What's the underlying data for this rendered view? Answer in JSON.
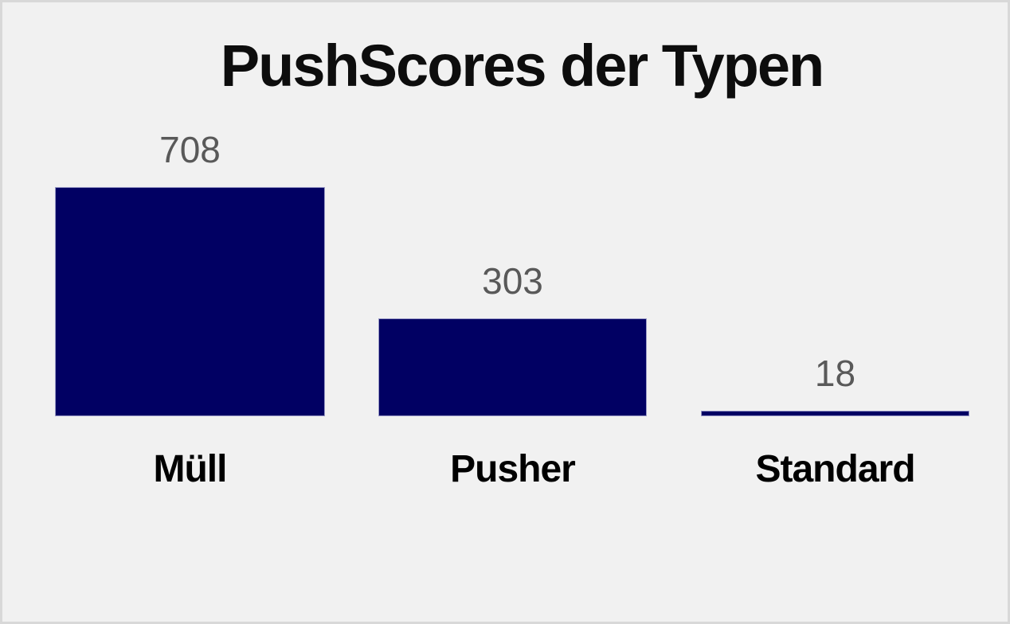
{
  "chart": {
    "title": "PushScores der Typen",
    "bars": [
      {
        "label": "Müll",
        "value_label": "708"
      },
      {
        "label": "Pusher",
        "value_label": "303"
      },
      {
        "label": "Standard",
        "value_label": "18"
      }
    ]
  },
  "chart_data": {
    "type": "bar",
    "title": "PushScores der Typen",
    "categories": [
      "Müll",
      "Pusher",
      "Standard"
    ],
    "values": [
      708,
      303,
      18
    ],
    "xlabel": "",
    "ylabel": "",
    "ylim": [
      0,
      708
    ],
    "grid": false,
    "legend": false,
    "data_labels": true,
    "colors": {
      "bar_fill": "#010063",
      "bar_edge": "#9a9ac6",
      "data_label_text": "#595959",
      "category_label_text": "#000000",
      "title_text": "#0d0d0d",
      "background": "#f1f1f1",
      "frame_border": "#d8d8d8"
    }
  }
}
